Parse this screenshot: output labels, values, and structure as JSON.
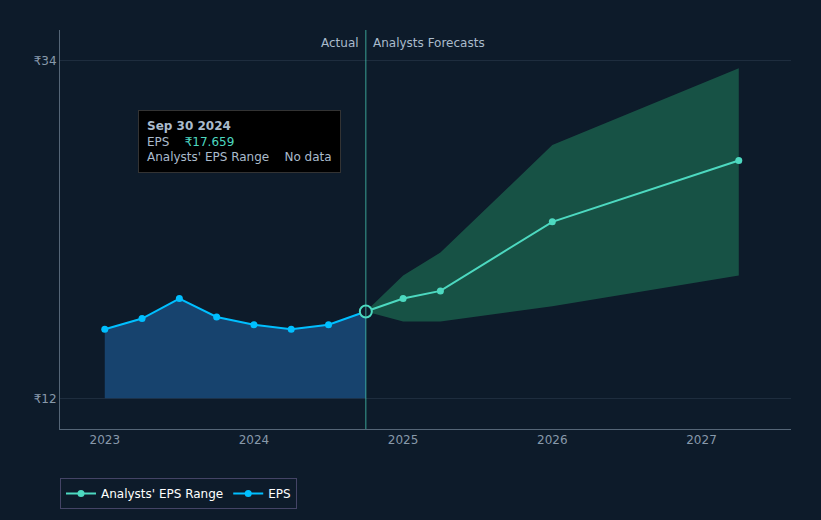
{
  "chart_data": {
    "type": "line",
    "background": "#0d1b2a",
    "xlim": [
      2022.7,
      2027.6
    ],
    "xticks": [
      2023,
      2024,
      2025,
      2026,
      2027
    ],
    "ylim": [
      10,
      36
    ],
    "yticks": [
      {
        "value": 12,
        "label": "₹12"
      },
      {
        "value": 34,
        "label": "₹34"
      }
    ],
    "grid": true,
    "grid_color": "#1e2d3e",
    "legend": "bottom",
    "series": [
      {
        "name": "EPS",
        "color": "#00bfff",
        "marker": "circle",
        "x": [
          2023.0,
          2023.25,
          2023.5,
          2023.75,
          2024.0,
          2024.25,
          2024.5,
          2024.75
        ],
        "values": [
          16.5,
          17.2,
          18.5,
          17.3,
          16.8,
          16.5,
          16.8,
          17.659
        ],
        "band_lower": [
          12,
          12,
          12,
          12,
          12,
          12,
          12,
          12
        ],
        "band_color": "#1a4a7a"
      },
      {
        "name": "Analysts' EPS Range",
        "color": "#4dd9c0",
        "marker": "circle",
        "x": [
          2024.75,
          2025.0,
          2025.25,
          2026.0,
          2027.25
        ],
        "values": [
          17.659,
          18.5,
          19.0,
          23.5,
          27.5
        ],
        "band_lower": [
          17.659,
          17.0,
          17.0,
          18.0,
          20.0
        ],
        "band_upper": [
          17.659,
          20.0,
          21.5,
          28.5,
          33.5
        ],
        "band_color": "#1a5c4a"
      }
    ],
    "divider": {
      "x": 2024.75,
      "color": "#4dd9c0",
      "labels": [
        "Actual",
        "Analysts Forecasts"
      ]
    },
    "highlight_point": {
      "x": 2024.75,
      "y": 17.659
    },
    "tooltip": {
      "title": "Sep 30 2024",
      "background": "#000000",
      "border": "#333333",
      "rows": [
        {
          "label": "EPS",
          "value": "₹17.659"
        },
        {
          "label": "Analysts' EPS Range",
          "value": "No data"
        }
      ]
    }
  }
}
